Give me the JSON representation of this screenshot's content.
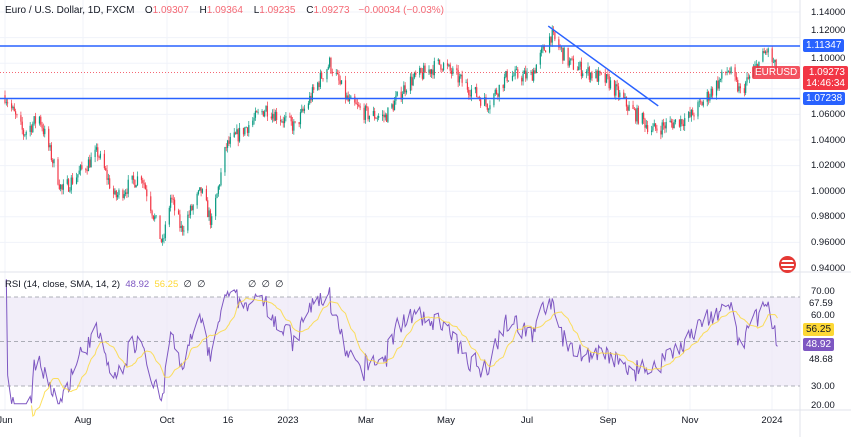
{
  "header": {
    "symbol_title": "Euro / U.S. Dollar, 1D, FXCM",
    "open_label": "O",
    "open": "1.09307",
    "high_label": "H",
    "high": "1.09364",
    "low_label": "L",
    "low": "1.09235",
    "close_label": "C",
    "close": "1.09273",
    "change": "−0.00034 (−0.03%)"
  },
  "rsi_legend": {
    "title": "RSI (14, close, SMA, 14, 2)",
    "rsi": "48.92",
    "sma": "56.25",
    "na": [
      "∅",
      "∅",
      "∅",
      "∅",
      "∅"
    ]
  },
  "price_axis": [
    "1.14000",
    "1.12000",
    "1.10000",
    "1.06000",
    "1.04000",
    "1.02000",
    "1.00000",
    "0.98000",
    "0.96000",
    "0.94000"
  ],
  "rsi_axis": [
    "70.00",
    "60.00",
    "30.00",
    "20.00"
  ],
  "tags": {
    "resistance": "1.11347",
    "support": "1.07238",
    "symbol": "EURUSD",
    "last_price": "1.09273",
    "countdown": "14:46:34",
    "rsi_high": "67.59",
    "rsi_sma": "56.25",
    "rsi_value": "48.92",
    "rsi_low": "48.68"
  },
  "time_axis": [
    "Jun",
    "Aug",
    "Oct",
    "16",
    "2023",
    "Mar",
    "May",
    "Jul",
    "Sep",
    "Nov",
    "2024"
  ],
  "colors": {
    "up": "#089981",
    "down": "#f23645",
    "level_line": "#2962ff",
    "trendline": "#2962ff",
    "rsi": "#7e57c2",
    "rsi_sma": "#fdd835",
    "rsi_band": "#ede7f6"
  },
  "chart_data": {
    "type": "candlestick",
    "symbol": "EURUSD",
    "interval": "1D",
    "ylim": [
      0.94,
      1.14
    ],
    "horizontal_levels": [
      1.11347,
      1.07238
    ],
    "trendline": {
      "from": [
        "2023-07-16",
        1.129
      ],
      "to": [
        "2023-10-07",
        1.0666
      ]
    },
    "close_path": [
      [
        "2022-06-01",
        1.075
      ],
      [
        "2022-06-15",
        1.045
      ],
      [
        "2022-06-27",
        1.058
      ],
      [
        "2022-07-14",
        1.0
      ],
      [
        "2022-08-10",
        1.03
      ],
      [
        "2022-08-23",
        0.995
      ],
      [
        "2022-09-12",
        1.013
      ],
      [
        "2022-09-28",
        0.958
      ],
      [
        "2022-10-04",
        0.995
      ],
      [
        "2022-10-12",
        0.97
      ],
      [
        "2022-10-27",
        1.0
      ],
      [
        "2022-11-04",
        0.975
      ],
      [
        "2022-11-15",
        1.035
      ],
      [
        "2022-12-15",
        1.065
      ],
      [
        "2023-01-06",
        1.05
      ],
      [
        "2023-01-26",
        1.09
      ],
      [
        "2023-02-01",
        1.1
      ],
      [
        "2023-02-15",
        1.07
      ],
      [
        "2023-03-01",
        1.06
      ],
      [
        "2023-03-15",
        1.058
      ],
      [
        "2023-04-01",
        1.085
      ],
      [
        "2023-04-26",
        1.1
      ],
      [
        "2023-05-31",
        1.068
      ],
      [
        "2023-06-15",
        1.09
      ],
      [
        "2023-07-03",
        1.09
      ],
      [
        "2023-07-18",
        1.122
      ],
      [
        "2023-08-01",
        1.1
      ],
      [
        "2023-08-31",
        1.085
      ],
      [
        "2023-09-15",
        1.065
      ],
      [
        "2023-10-03",
        1.048
      ],
      [
        "2023-10-31",
        1.058
      ],
      [
        "2023-11-10",
        1.07
      ],
      [
        "2023-11-29",
        1.095
      ],
      [
        "2023-12-08",
        1.077
      ],
      [
        "2023-12-28",
        1.11
      ],
      [
        "2024-01-05",
        1.0927
      ]
    ],
    "rsi": {
      "period": 14,
      "sma_period": 14,
      "ylim": [
        20,
        80
      ],
      "bands": [
        30,
        70
      ],
      "last": 48.92,
      "last_sma": 56.25
    }
  }
}
